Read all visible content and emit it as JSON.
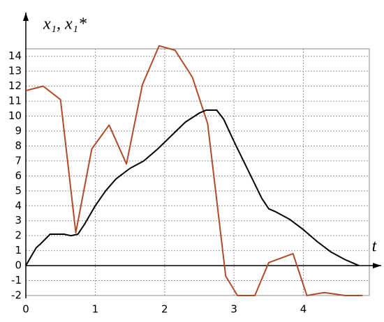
{
  "chart_data": {
    "type": "line",
    "y_label": "x₁, x₁*",
    "x_label": "t",
    "xlim": [
      0,
      4.95
    ],
    "ylim": [
      -2,
      14.5
    ],
    "xticks": [
      0,
      1,
      2,
      3,
      4
    ],
    "yticks": [
      -2,
      -1,
      0,
      1,
      2,
      3,
      4,
      5,
      6,
      7,
      8,
      9,
      10,
      11,
      12,
      13,
      14
    ],
    "grid": true,
    "series": [
      {
        "color": "#b04a2a",
        "x": [
          0,
          0.25,
          0.5,
          0.72,
          0.95,
          1.2,
          1.45,
          1.68,
          1.92,
          2.15,
          2.4,
          2.62,
          2.88,
          3.05,
          3.3,
          3.5,
          3.85,
          4.05,
          4.3,
          4.6,
          4.85
        ],
        "values": [
          11.7,
          12.0,
          11.1,
          2.2,
          7.8,
          9.4,
          6.8,
          12.1,
          14.7,
          14.4,
          12.6,
          9.5,
          -0.7,
          -2,
          -2,
          0.2,
          0.8,
          -2,
          -1.8,
          -2,
          -2
        ]
      },
      {
        "color": "#000000",
        "x": [
          0,
          0.1,
          0.15,
          0.2,
          0.35,
          0.55,
          0.65,
          0.75,
          0.85,
          1.0,
          1.15,
          1.3,
          1.5,
          1.7,
          1.9,
          2.1,
          2.3,
          2.5,
          2.6,
          2.75,
          2.85,
          3.0,
          3.2,
          3.4,
          3.5,
          3.6,
          3.8,
          4.0,
          4.2,
          4.4,
          4.6,
          4.8
        ],
        "values": [
          0,
          0.8,
          1.2,
          1.4,
          2.1,
          2.1,
          2.0,
          2.1,
          2.8,
          4.0,
          5.0,
          5.8,
          6.5,
          7.0,
          7.8,
          8.7,
          9.6,
          10.2,
          10.4,
          10.4,
          9.8,
          8.3,
          6.4,
          4.5,
          3.8,
          3.6,
          3.1,
          2.4,
          1.6,
          0.9,
          0.4,
          0
        ]
      }
    ]
  }
}
